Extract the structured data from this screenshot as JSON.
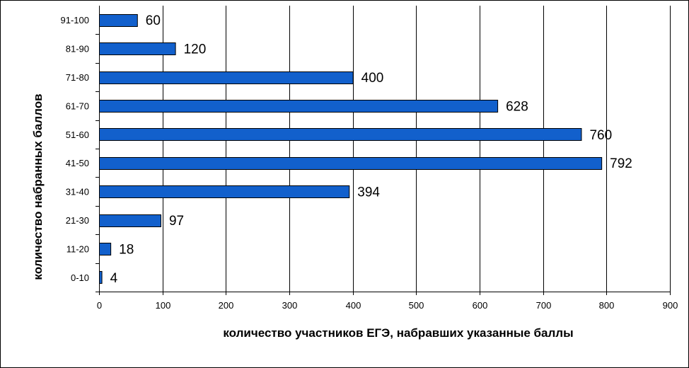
{
  "chart_data": {
    "type": "bar",
    "orientation": "horizontal",
    "categories": [
      "0-10",
      "11-20",
      "21-30",
      "31-40",
      "41-50",
      "51-60",
      "61-70",
      "71-80",
      "81-90",
      "91-100"
    ],
    "values": [
      4,
      18,
      97,
      394,
      792,
      760,
      628,
      400,
      120,
      60
    ],
    "data_labels": [
      "4",
      "18",
      "97",
      "394",
      "792",
      "760",
      "628",
      "400",
      "120",
      "60"
    ],
    "xlabel": "количество участников ЕГЭ, набравших указанные баллы",
    "ylabel": "количество набранных баллов",
    "xlim": [
      0,
      900
    ],
    "x_ticks": [
      "0",
      "100",
      "200",
      "300",
      "400",
      "500",
      "600",
      "700",
      "800",
      "900"
    ],
    "grid": "vertical",
    "legend": "none",
    "bar_color": "#1260CC"
  }
}
